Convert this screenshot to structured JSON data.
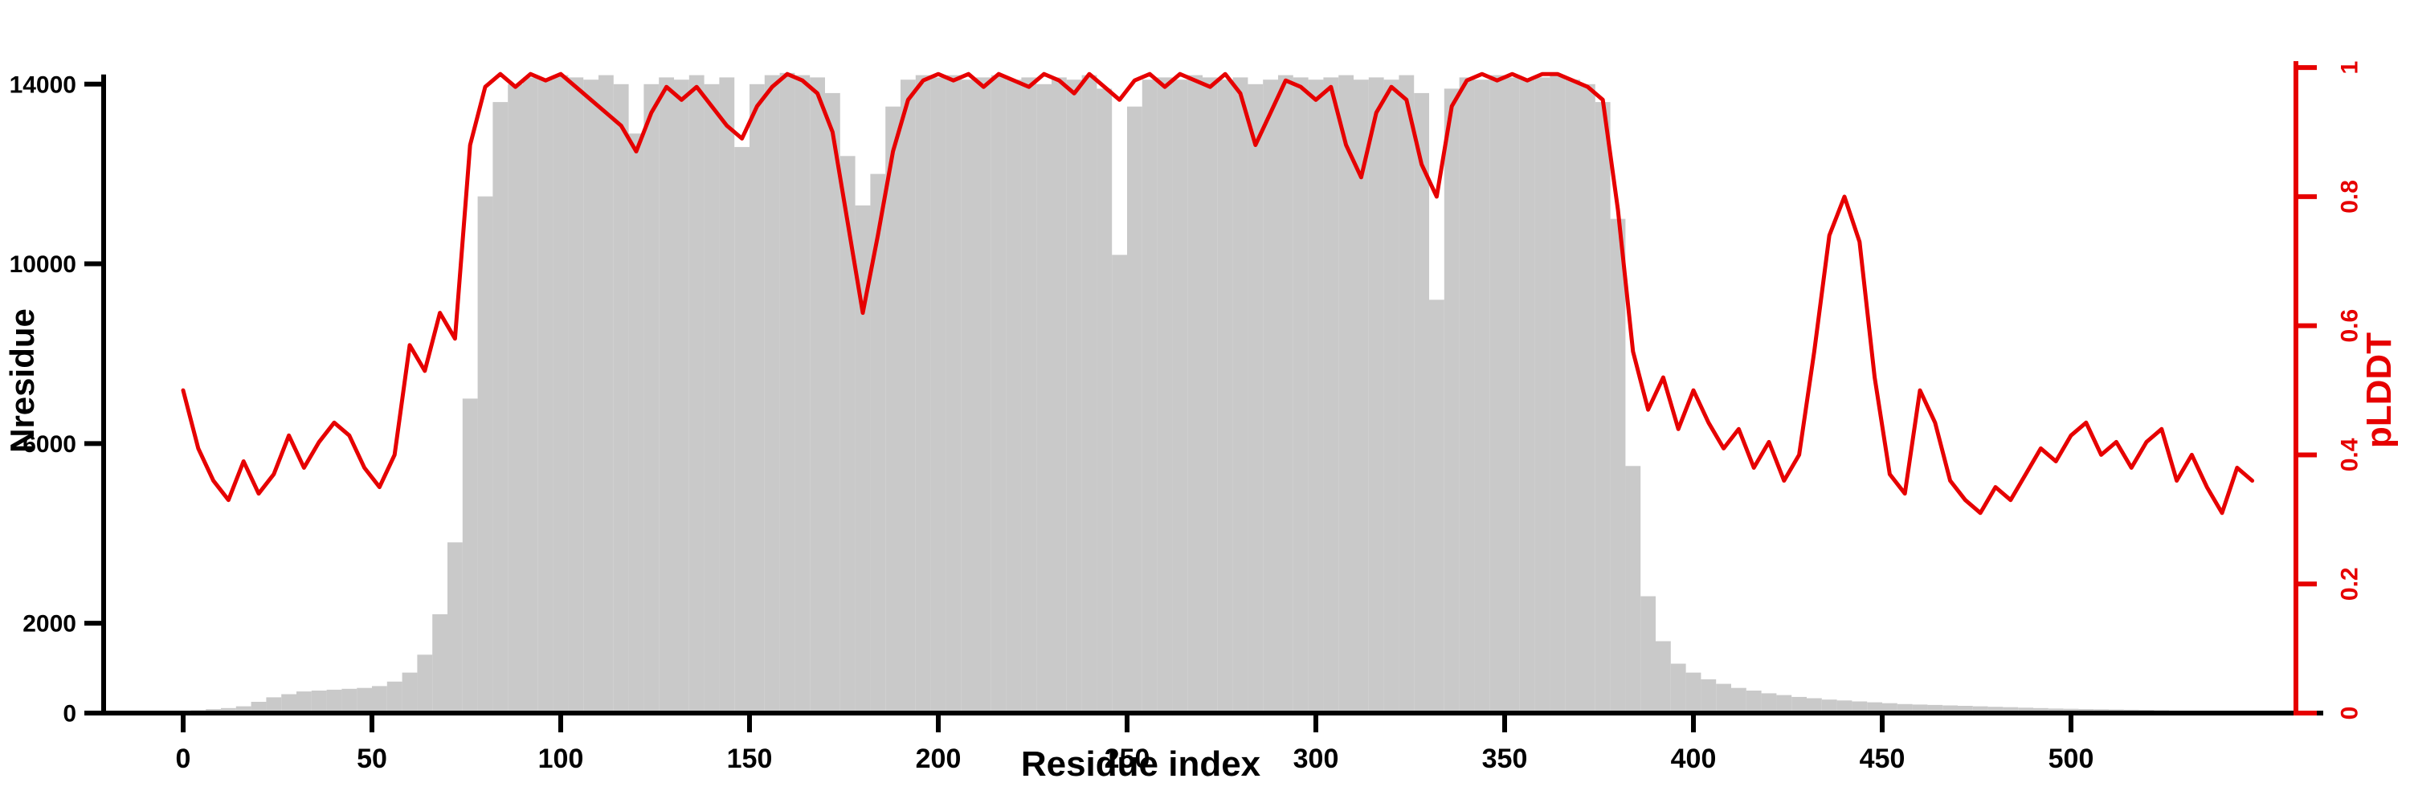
{
  "chart_data": {
    "type": "bar+line",
    "title": "",
    "xlabel": "Residue index",
    "ylabel": "Nresidue",
    "y2label": "pLDDT",
    "x_start": 0,
    "x_step": 4,
    "xlim": [
      0,
      548
    ],
    "ylim": [
      0,
      14800
    ],
    "y2lim": [
      0,
      1.03
    ],
    "x_ticks": [
      0,
      50,
      100,
      150,
      200,
      250,
      300,
      350,
      400,
      450,
      500
    ],
    "y_ticks": [
      0,
      2000,
      6000,
      10000,
      14000
    ],
    "y2_ticks": [
      0,
      0.2,
      0.4,
      0.6,
      0.8,
      1
    ],
    "axis_color": "#000000",
    "grid": false,
    "series": [
      {
        "name": "Nresidue",
        "type": "bar",
        "color": "#c9c9c9",
        "values": [
          30,
          60,
          90,
          110,
          150,
          250,
          350,
          420,
          480,
          500,
          520,
          540,
          560,
          600,
          700,
          900,
          1300,
          2200,
          3800,
          7000,
          11500,
          13600,
          14000,
          14150,
          14100,
          14200,
          14150,
          14100,
          14200,
          14000,
          12900,
          14000,
          14150,
          14100,
          14200,
          14000,
          14150,
          12600,
          14000,
          14200,
          14250,
          14200,
          14150,
          13800,
          12400,
          11300,
          12000,
          13500,
          14100,
          14200,
          14150,
          14200,
          14100,
          14150,
          14200,
          14100,
          14150,
          14000,
          14150,
          14100,
          14200,
          13900,
          10200,
          13500,
          14100,
          14150,
          14100,
          14200,
          14150,
          14100,
          14150,
          14000,
          14100,
          14200,
          14150,
          14100,
          14150,
          14200,
          14100,
          14150,
          14100,
          14200,
          13800,
          9200,
          13900,
          14150,
          14100,
          14200,
          14150,
          14100,
          14150,
          14200,
          14100,
          14000,
          13600,
          11000,
          5500,
          2600,
          1600,
          1100,
          900,
          750,
          650,
          560,
          500,
          440,
          400,
          360,
          330,
          300,
          280,
          260,
          240,
          220,
          200,
          190,
          180,
          170,
          160,
          150,
          140,
          130,
          120,
          110,
          100,
          95,
          90,
          85,
          80,
          75,
          70,
          60,
          50,
          45,
          40,
          35,
          30,
          25
        ]
      },
      {
        "name": "pLDDT",
        "type": "line",
        "color": "#e60000",
        "values": [
          0.5,
          0.41,
          0.36,
          0.33,
          0.39,
          0.34,
          0.37,
          0.43,
          0.38,
          0.42,
          0.45,
          0.43,
          0.38,
          0.35,
          0.4,
          0.57,
          0.53,
          0.62,
          0.58,
          0.88,
          0.97,
          0.99,
          0.97,
          0.99,
          0.98,
          0.99,
          0.97,
          0.95,
          0.93,
          0.91,
          0.87,
          0.93,
          0.97,
          0.95,
          0.97,
          0.94,
          0.91,
          0.89,
          0.94,
          0.97,
          0.99,
          0.98,
          0.96,
          0.9,
          0.76,
          0.62,
          0.74,
          0.87,
          0.95,
          0.98,
          0.99,
          0.98,
          0.99,
          0.97,
          0.99,
          0.98,
          0.97,
          0.99,
          0.98,
          0.96,
          0.99,
          0.97,
          0.95,
          0.98,
          0.99,
          0.97,
          0.99,
          0.98,
          0.97,
          0.99,
          0.96,
          0.88,
          0.93,
          0.98,
          0.97,
          0.95,
          0.97,
          0.88,
          0.83,
          0.93,
          0.97,
          0.95,
          0.85,
          0.8,
          0.94,
          0.98,
          0.99,
          0.98,
          0.99,
          0.98,
          0.99,
          0.99,
          0.98,
          0.97,
          0.95,
          0.78,
          0.56,
          0.47,
          0.52,
          0.44,
          0.5,
          0.45,
          0.41,
          0.44,
          0.38,
          0.42,
          0.36,
          0.4,
          0.56,
          0.74,
          0.8,
          0.73,
          0.52,
          0.37,
          0.34,
          0.5,
          0.45,
          0.36,
          0.33,
          0.31,
          0.35,
          0.33,
          0.37,
          0.41,
          0.39,
          0.43,
          0.45,
          0.4,
          0.42,
          0.38,
          0.42,
          0.44,
          0.36,
          0.4,
          0.35,
          0.31,
          0.38,
          0.36
        ]
      }
    ]
  }
}
